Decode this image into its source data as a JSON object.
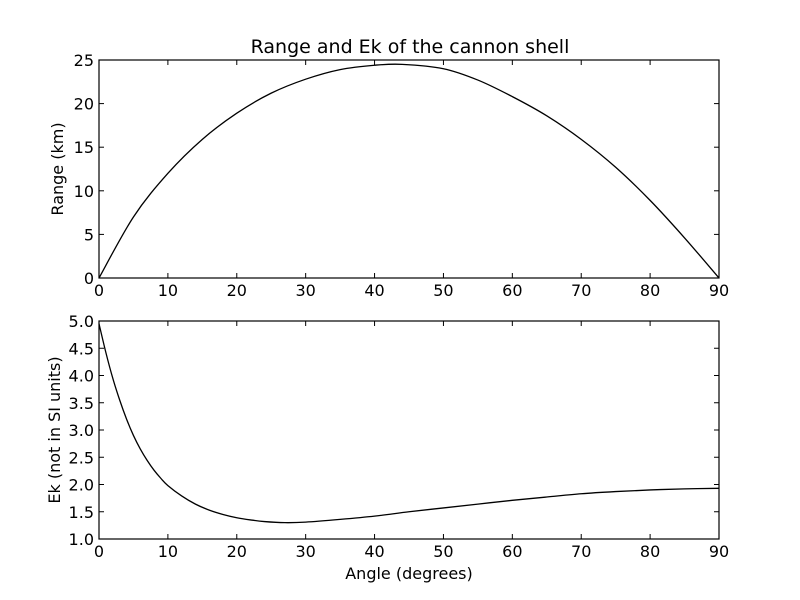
{
  "chart_data": [
    {
      "type": "line",
      "title": "Range and Ek of the cannon shell",
      "xlabel": "",
      "ylabel": "Range (km)",
      "xlim": [
        0,
        90
      ],
      "ylim": [
        0,
        25
      ],
      "xticks": [
        0,
        10,
        20,
        30,
        40,
        50,
        60,
        70,
        80,
        90
      ],
      "yticks": [
        0,
        5,
        10,
        15,
        20,
        25
      ],
      "xtick_labels": [
        "0",
        "10",
        "20",
        "30",
        "40",
        "50",
        "60",
        "70",
        "80",
        "90"
      ],
      "ytick_labels": [
        "0",
        "5",
        "10",
        "15",
        "20",
        "25"
      ],
      "grid": false,
      "series": [
        {
          "color": "#000000",
          "x": [
            0,
            5,
            10,
            15,
            20,
            25,
            30,
            35,
            40,
            44,
            50,
            55,
            60,
            65,
            70,
            75,
            80,
            85,
            90
          ],
          "y": [
            0,
            7.0,
            12.0,
            15.9,
            18.9,
            21.2,
            22.8,
            23.9,
            24.4,
            24.5,
            24.0,
            22.7,
            20.8,
            18.6,
            15.9,
            12.7,
            8.9,
            4.6,
            0
          ]
        }
      ]
    },
    {
      "type": "line",
      "title": "",
      "xlabel": "Angle (degrees)",
      "ylabel": "Ek (not in SI units)",
      "xlim": [
        0,
        90
      ],
      "ylim": [
        1.0,
        5.0
      ],
      "xticks": [
        0,
        10,
        20,
        30,
        40,
        50,
        60,
        70,
        80,
        90
      ],
      "yticks": [
        1.0,
        1.5,
        2.0,
        2.5,
        3.0,
        3.5,
        4.0,
        4.5,
        5.0
      ],
      "xtick_labels": [
        "0",
        "10",
        "20",
        "30",
        "40",
        "50",
        "60",
        "70",
        "80",
        "90"
      ],
      "ytick_labels": [
        "1.0",
        "1.5",
        "2.0",
        "2.5",
        "3.0",
        "3.5",
        "4.0",
        "4.5",
        "5.0"
      ],
      "grid": false,
      "series": [
        {
          "color": "#000000",
          "x": [
            0,
            1,
            2,
            3,
            4,
            5,
            6,
            7,
            8,
            9,
            10,
            12,
            14,
            16,
            18,
            20,
            22,
            24,
            27,
            30,
            35,
            40,
            45,
            50,
            55,
            60,
            65,
            70,
            75,
            80,
            85,
            90
          ],
          "y": [
            4.95,
            4.42,
            3.95,
            3.55,
            3.2,
            2.9,
            2.65,
            2.44,
            2.26,
            2.11,
            1.98,
            1.79,
            1.64,
            1.53,
            1.45,
            1.39,
            1.35,
            1.32,
            1.3,
            1.31,
            1.36,
            1.42,
            1.5,
            1.57,
            1.64,
            1.71,
            1.77,
            1.83,
            1.87,
            1.9,
            1.92,
            1.93
          ]
        }
      ]
    }
  ]
}
